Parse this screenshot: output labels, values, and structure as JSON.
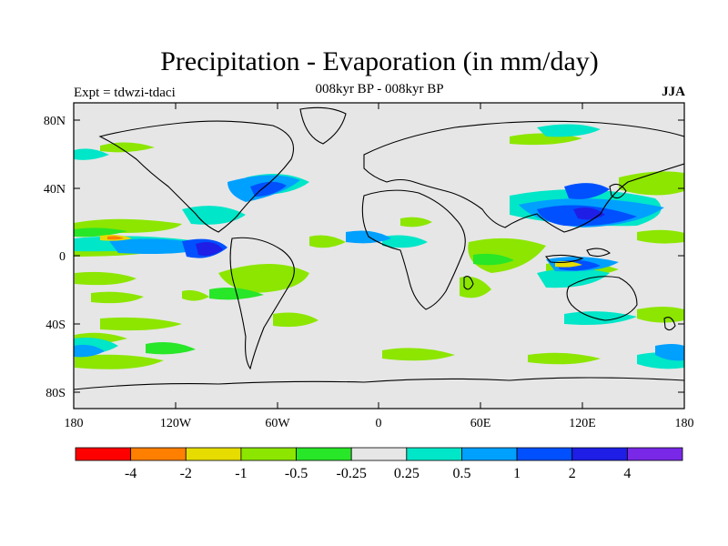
{
  "header": {
    "title": "Precipitation - Evaporation (in mm/day)",
    "subtitle": "008kyr BP - 008kyr BP",
    "experiment": "Expt = tdwzi-tdaci",
    "season": "JJA"
  },
  "map": {
    "lat_ticks": [
      "80N",
      "40N",
      "0",
      "40S",
      "80S"
    ],
    "lon_ticks": [
      "180",
      "120W",
      "60W",
      "0",
      "60E",
      "120E",
      "180"
    ],
    "ocean_color": "#e6e6e6",
    "coast_color": "#000000"
  },
  "colorbar": {
    "colors": [
      "#ff0000",
      "#ff8000",
      "#e6dc00",
      "#8ce600",
      "#28e628",
      "#e6e6e6",
      "#00e6c8",
      "#00a0ff",
      "#0050ff",
      "#1e1ee6",
      "#7828e6"
    ],
    "labels": [
      "-4",
      "-2",
      "-1",
      "-0.5",
      "-0.25",
      "0.25",
      "0.5",
      "1",
      "2",
      "4"
    ]
  }
}
